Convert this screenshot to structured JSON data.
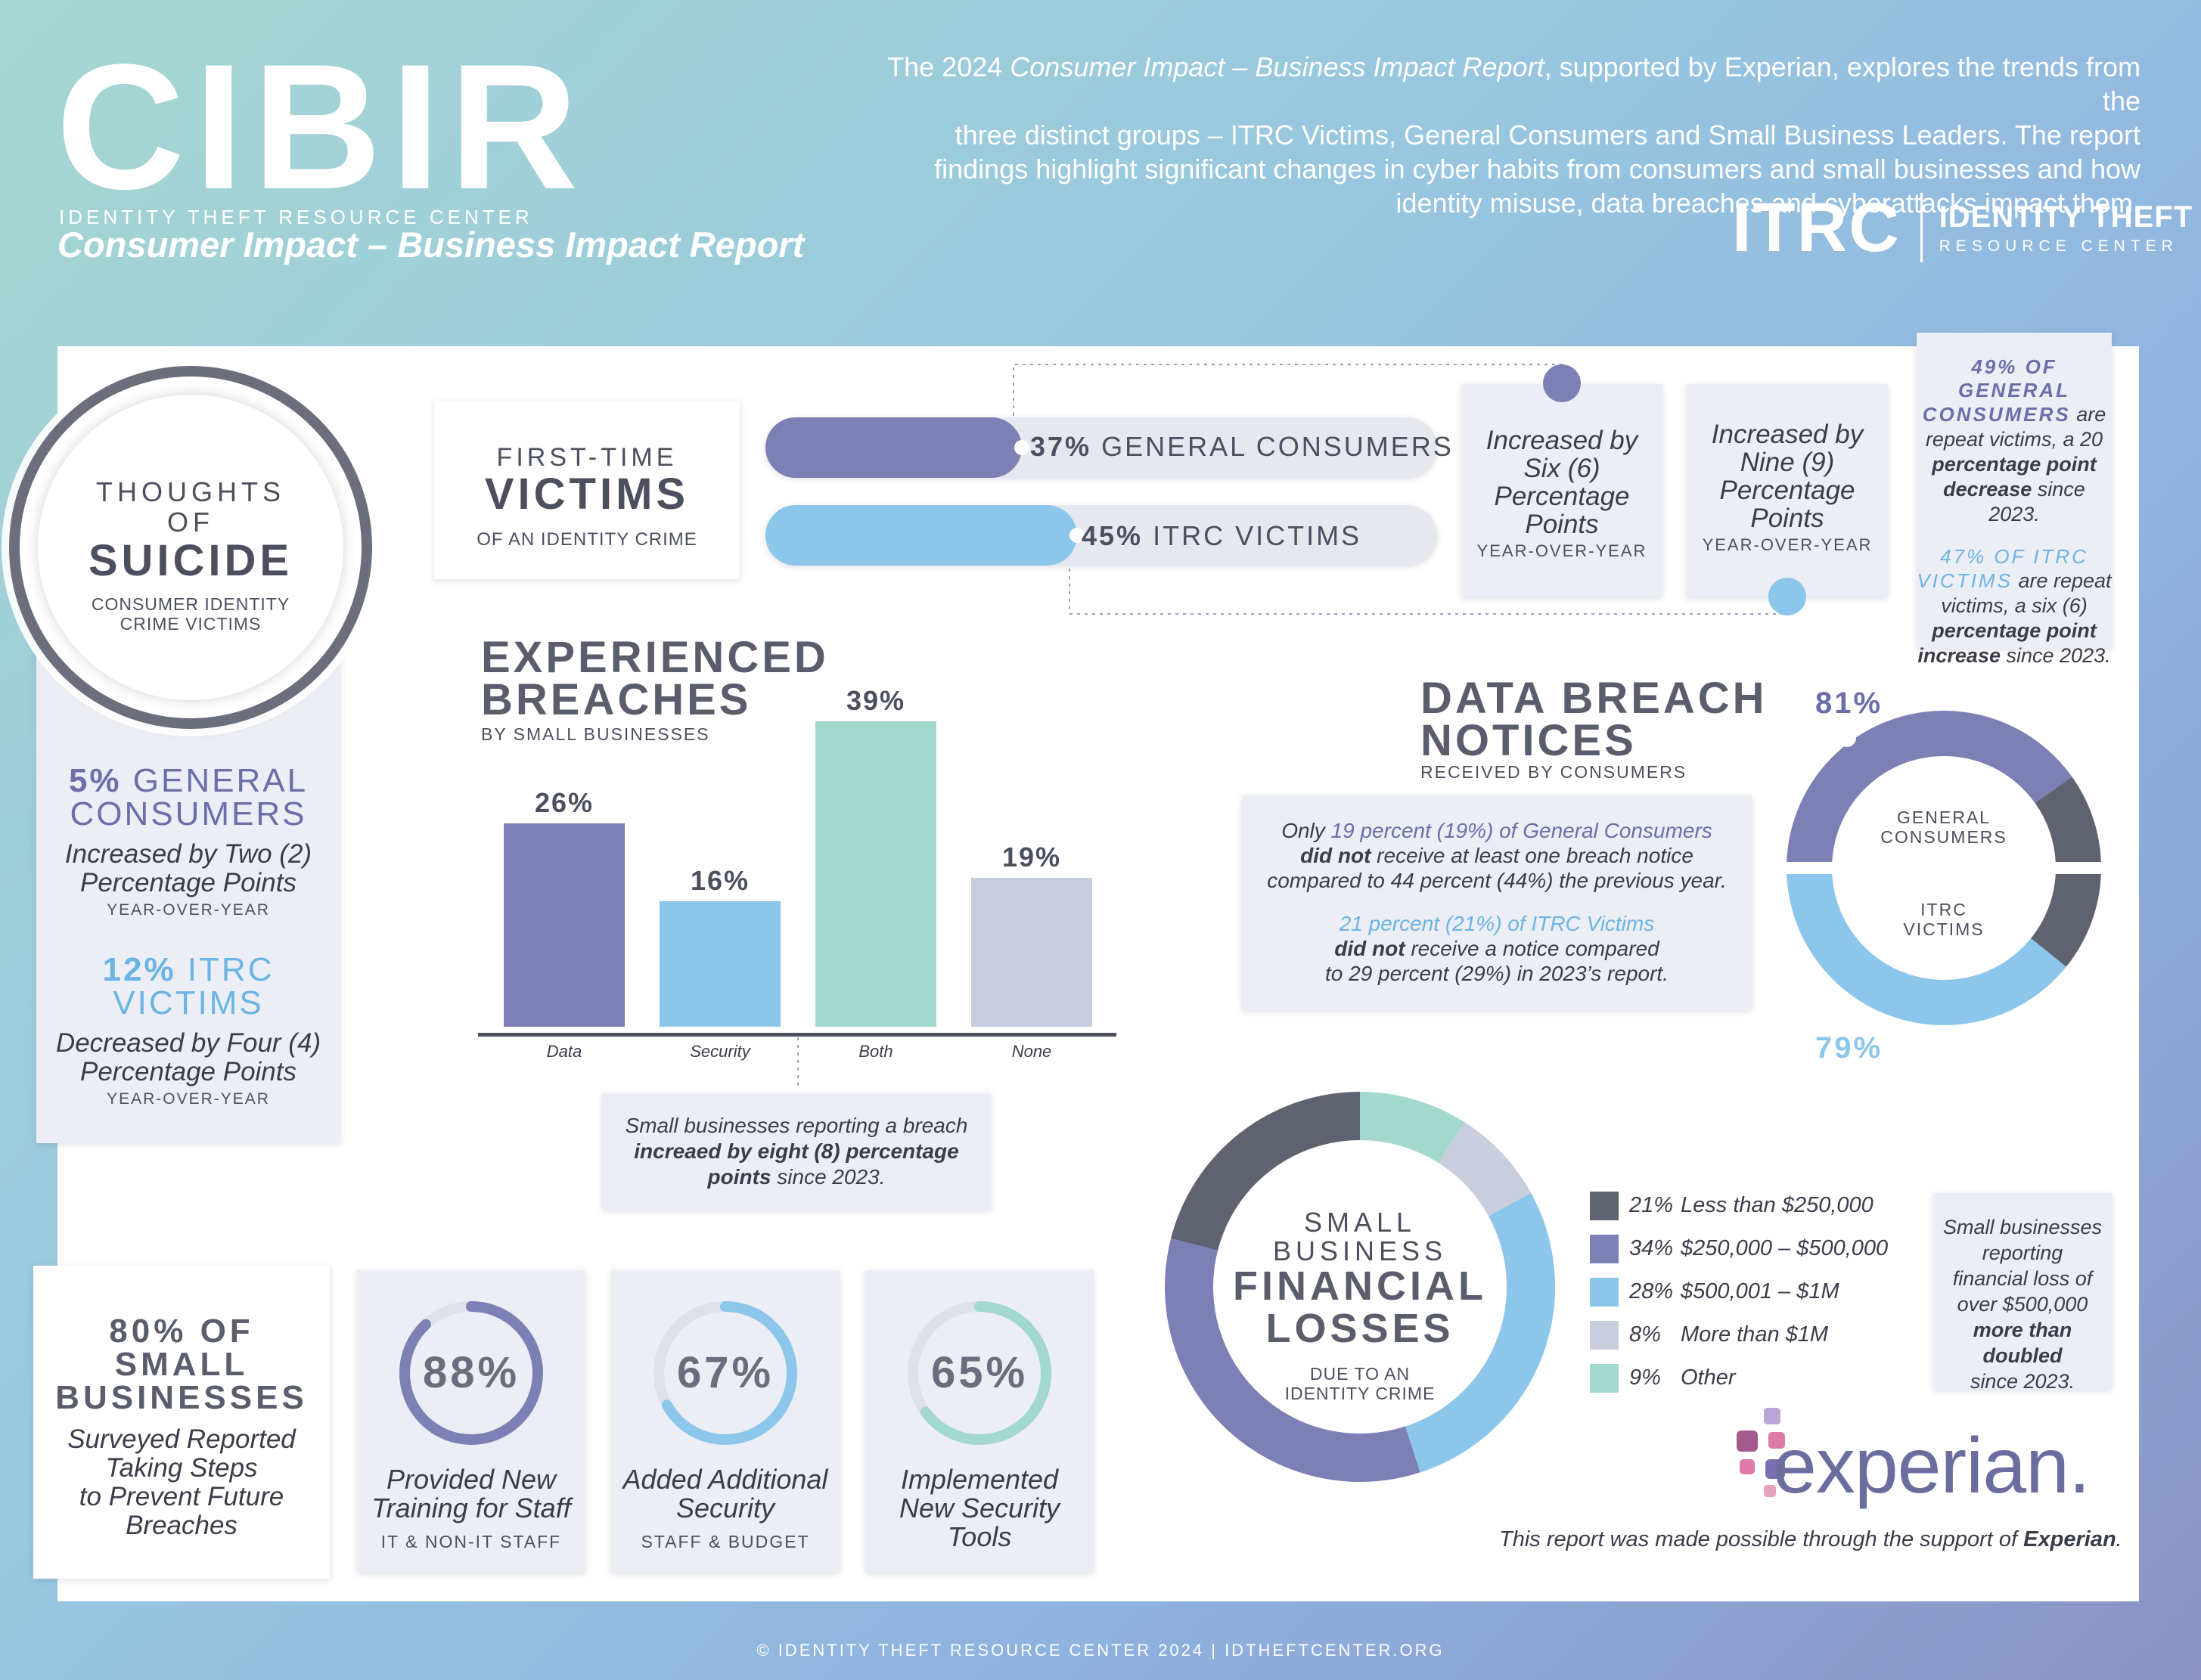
{
  "header": {
    "title": "CIBIR",
    "org": "IDENTITY THEFT RESOURCE CENTER",
    "subtitle": "Consumer Impact – Business Impact Report",
    "intro_l1a": "The 2024 ",
    "intro_l1b": "Consumer Impact – Business Impact Report",
    "intro_l1c": ", supported by Experian, explores the trends from the",
    "intro_l2": "three distinct groups – ITRC Victims, General Consumers and Small Business Leaders. The report",
    "intro_l3": "findings highlight significant changes in cyber habits from consumers and small businesses and how",
    "intro_l4": "identity misuse, data breaches and cyberattacks impact them.",
    "logo_mark": "ITRC",
    "logo_l1": "IDENTITY THEFT",
    "logo_l2": "RESOURCE CENTER"
  },
  "suicide": {
    "l1": "THOUGHTS",
    "l2": "OF",
    "l3": "SUICIDE",
    "l4": "CONSUMER IDENTITY",
    "l5": "CRIME VICTIMS",
    "gen_pct": "5%",
    "gen_l1": "GENERAL",
    "gen_l2": "CONSUMERS",
    "gen_t1": "Increased by Two (2)",
    "gen_t2": "Percentage Points",
    "gen_yoy": "YEAR-OVER-YEAR",
    "itrc_pct": "12%",
    "itrc_l1": "ITRC",
    "itrc_l2": "VICTIMS",
    "itrc_t1": "Decreased by Four (4)",
    "itrc_t2": "Percentage Points",
    "itrc_yoy": "YEAR-OVER-YEAR"
  },
  "first_time": {
    "l1": "FIRST-TIME",
    "l2": "VICTIMS",
    "l3": "OF AN IDENTITY CRIME",
    "gen_pct": "37%",
    "gen_label": "GENERAL CONSUMERS",
    "gen_value": 37,
    "itrc_pct": "45%",
    "itrc_label": "ITRC VICTIMS",
    "itrc_value": 45,
    "six_1": "Increased by",
    "six_2": "Six (6)",
    "six_3": "Percentage",
    "six_4": "Points",
    "six_yoy": "YEAR-OVER-YEAR",
    "nine_1": "Increased by",
    "nine_2": "Nine (9)",
    "nine_3": "Percentage",
    "nine_4": "Points",
    "nine_yoy": "YEAR-OVER-YEAR",
    "colors": {
      "gen": "#7d80b5",
      "itrc": "#8cc6ea"
    }
  },
  "repeat": {
    "a1": "49% OF GENERAL",
    "a2": "CONSUMERS",
    "a3": "are",
    "a4": "repeat victims, a 20",
    "a5": "percentage point",
    "a6": "decrease",
    "a7": "since 2023.",
    "b1": "47% OF ITRC",
    "b2": "VICTIMS",
    "b3": "are repeat",
    "b4": "victims, a six (6)",
    "b5": "percentage point",
    "b6": "increase",
    "b7": "since 2023."
  },
  "breaches": {
    "h1": "EXPERIENCED",
    "h2": "BREACHES",
    "sub": "BY SMALL BUSINESSES",
    "note_1": "Small businesses reporting a breach",
    "note_2": "increaed by eight (8) percentage",
    "note_3a": "points",
    "note_3b": " since 2023."
  },
  "chart_data": [
    {
      "type": "bar",
      "title": "EXPERIENCED BREACHES",
      "subtitle": "BY SMALL BUSINESSES",
      "categories": [
        "Data",
        "Security",
        "Both",
        "None"
      ],
      "values": [
        26,
        16,
        39,
        19
      ],
      "labels": [
        "26%",
        "16%",
        "39%",
        "19%"
      ],
      "colors": [
        "#7d80b5",
        "#8cc6ea",
        "#a3d8cd",
        "#c8cede"
      ],
      "ylim": [
        0,
        39
      ]
    },
    {
      "type": "pie",
      "title": "DATA BREACH NOTICES",
      "series": [
        {
          "name": "GENERAL CONSUMERS",
          "values": [
            81,
            19
          ],
          "label": "81%",
          "colors": [
            "#7d80b5",
            "#5f6270"
          ]
        },
        {
          "name": "ITRC VICTIMS",
          "values": [
            79,
            21
          ],
          "label": "79%",
          "colors": [
            "#8cc6ea",
            "#5f6270"
          ]
        }
      ]
    },
    {
      "type": "pie",
      "title": "SMALL BUSINESS FINANCIAL LOSSES",
      "categories": [
        "Less than $250,000",
        "$250,000 – $500,000",
        "$500,001 – $1M",
        "More than $1M",
        "Other"
      ],
      "values": [
        21,
        34,
        28,
        8,
        9
      ],
      "colors": [
        "#5f6270",
        "#7d80b5",
        "#8cc6ea",
        "#c8cede",
        "#a3d8cd"
      ]
    }
  ],
  "notices": {
    "h1": "DATA BREACH",
    "h2": "NOTICES",
    "sub": "RECEIVED BY CONSUMERS",
    "p1a": "Only ",
    "p1b": "19 percent (19%) of General Consumers",
    "p1c": "did not",
    "p1d": " receive at least one breach notice",
    "p1e": "compared to 44 percent (44%) the previous year.",
    "p2a": "21 percent (21%) of ITRC Victims",
    "p2b": "did not",
    "p2c": " receive a notice compared",
    "p2d": "to 29 percent (29%) in 2023’s report.",
    "gen_pct": "81%",
    "itrc_pct": "79%",
    "gen_l1": "GENERAL",
    "gen_l2": "CONSUMERS",
    "itrc_l1": "ITRC",
    "itrc_l2": "VICTIMS"
  },
  "losses": {
    "l1": "SMALL",
    "l2": "BUSINESS",
    "l3": "FINANCIAL",
    "l4": "LOSSES",
    "l5": "DUE TO AN",
    "l6": "IDENTITY CRIME",
    "legend": [
      {
        "pct": "21%",
        "label": "Less than $250,000"
      },
      {
        "pct": "34%",
        "label": "$250,000 – $500,000"
      },
      {
        "pct": "28%",
        "label": "$500,001 – $1M"
      },
      {
        "pct": "8%",
        "label": "More than $1M"
      },
      {
        "pct": "9%",
        "label": "Other"
      }
    ],
    "side_1": "Small businesses",
    "side_2": "reporting",
    "side_3": "financial loss of",
    "side_4": "over $500,000",
    "side_5": "more than doubled",
    "side_6": "since 2023."
  },
  "steps": {
    "h1": "80% OF",
    "h2": "SMALL",
    "h3": "BUSINESSES",
    "t1": "Surveyed Reported",
    "t2": "Taking Steps",
    "t3": "to Prevent Future",
    "t4": "Breaches",
    "cards": [
      {
        "pct": "88%",
        "value": 88,
        "t1": "Provided New",
        "t2": "Training for Staff",
        "t3": "",
        "cap": "IT & NON-IT STAFF",
        "color": "#7d80b5"
      },
      {
        "pct": "67%",
        "value": 67,
        "t1": "Added Additional",
        "t2": "Security",
        "t3": "",
        "cap": "STAFF & BUDGET",
        "color": "#8cc6ea"
      },
      {
        "pct": "65%",
        "value": 65,
        "t1": "Implemented",
        "t2": "New Security",
        "t3": "Tools",
        "cap": "",
        "color": "#a3d8cd"
      }
    ]
  },
  "sponsor": {
    "logo": "experian.",
    "text_a": "This report was made possible through the support of ",
    "text_b": "Experian",
    "text_c": "."
  },
  "footer": "© IDENTITY THEFT RESOURCE CENTER 2024  |  IDTHEFTCENTER.ORG"
}
